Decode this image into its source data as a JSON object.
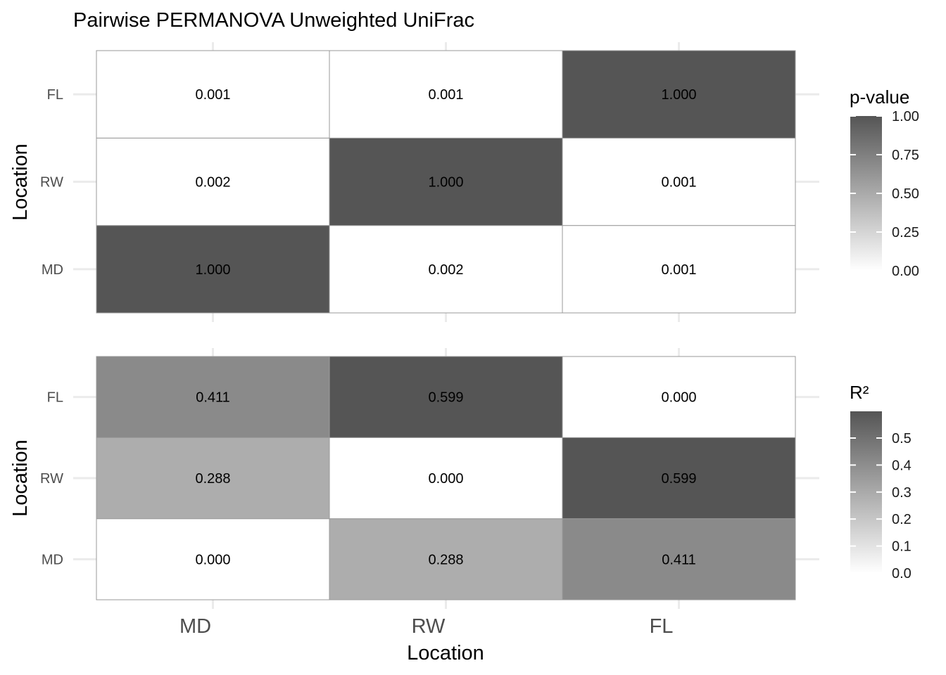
{
  "chart_data": {
    "type": "heatmap",
    "title": "Pairwise PERMANOVA Unweighted UniFrac",
    "xlabel": "Location",
    "x_categories": [
      "MD",
      "RW",
      "FL"
    ],
    "panels": [
      {
        "id": "pvalue",
        "ylabel": "Location",
        "y_categories": [
          "MD",
          "RW",
          "FL"
        ],
        "matrix": [
          [
            1.0,
            0.002,
            0.001
          ],
          [
            0.002,
            1.0,
            0.001
          ],
          [
            0.001,
            0.001,
            1.0
          ]
        ],
        "labels": [
          [
            "1.000",
            "0.002",
            "0.001"
          ],
          [
            "0.002",
            "1.000",
            "0.001"
          ],
          [
            "0.001",
            "0.001",
            "1.000"
          ]
        ],
        "legend": {
          "title": "p-value",
          "range": [
            0,
            1
          ],
          "ticks": [
            0,
            0.25,
            0.5,
            0.75,
            1
          ],
          "tick_labels": [
            "0.00",
            "0.25",
            "0.50",
            "0.75",
            "1.00"
          ],
          "low_color": "#ffffff",
          "high_color": "#555555"
        }
      },
      {
        "id": "r2",
        "ylabel": "Location",
        "y_categories": [
          "MD",
          "RW",
          "FL"
        ],
        "matrix": [
          [
            0.0,
            0.288,
            0.411
          ],
          [
            0.288,
            0.0,
            0.599
          ],
          [
            0.411,
            0.599,
            0.0
          ]
        ],
        "labels": [
          [
            "0.000",
            "0.288",
            "0.411"
          ],
          [
            "0.288",
            "0.000",
            "0.599"
          ],
          [
            "0.411",
            "0.599",
            "0.000"
          ]
        ],
        "legend": {
          "title": "R²",
          "range": [
            0,
            0.599
          ],
          "ticks": [
            0,
            0.1,
            0.2,
            0.3,
            0.4,
            0.5
          ],
          "tick_labels": [
            "0.0",
            "0.1",
            "0.2",
            "0.3",
            "0.4",
            "0.5"
          ],
          "low_color": "#ffffff",
          "high_color": "#555555"
        }
      }
    ]
  }
}
